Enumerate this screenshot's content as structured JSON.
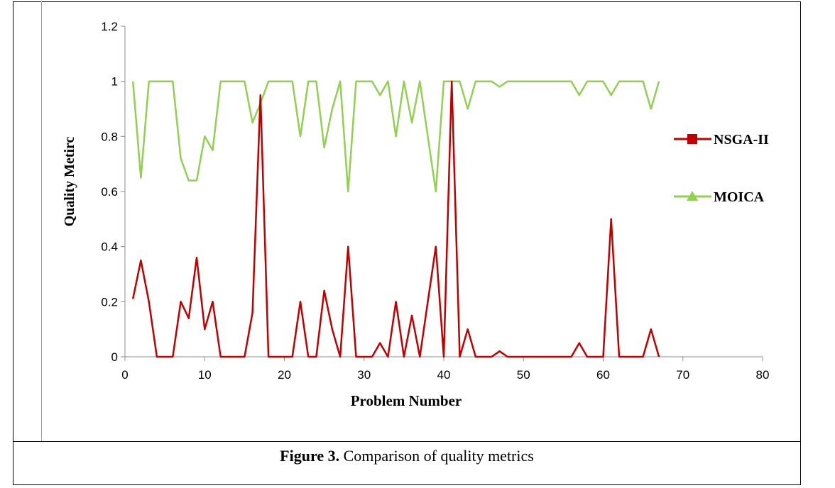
{
  "chart_data": {
    "type": "line",
    "title": "",
    "xlabel": "Problem Number",
    "ylabel": "Quality Metirc",
    "xlim": [
      0,
      80
    ],
    "ylim": [
      0,
      1.2
    ],
    "xticks": [
      "0",
      "10",
      "20",
      "30",
      "40",
      "50",
      "60",
      "70",
      "80"
    ],
    "yticks": [
      "0",
      "0.2",
      "0.4",
      "0.6",
      "0.8",
      "1",
      "1.2"
    ],
    "grid": false,
    "legend_position": "right",
    "x": [
      1,
      2,
      3,
      4,
      5,
      6,
      7,
      8,
      9,
      10,
      11,
      12,
      13,
      14,
      15,
      16,
      17,
      18,
      19,
      20,
      21,
      22,
      23,
      24,
      25,
      26,
      27,
      28,
      29,
      30,
      31,
      32,
      33,
      34,
      35,
      36,
      37,
      38,
      39,
      40,
      41,
      42,
      43,
      44,
      45,
      46,
      47,
      48,
      49,
      50,
      51,
      52,
      53,
      54,
      55,
      56,
      57,
      58,
      59,
      60,
      61,
      62,
      63,
      64,
      65,
      66,
      67
    ],
    "series": [
      {
        "name": "NSGA-II",
        "color": "#c00000",
        "marker": "square",
        "values": [
          0.21,
          0.35,
          0.2,
          0,
          0,
          0,
          0.2,
          0.14,
          0.36,
          0.1,
          0.2,
          0,
          0,
          0,
          0,
          0.16,
          0.95,
          0,
          0,
          0,
          0,
          0.2,
          0,
          0,
          0.24,
          0.1,
          0,
          0.4,
          0,
          0,
          0,
          0.05,
          0,
          0.2,
          0,
          0.15,
          0,
          0.2,
          0.4,
          0,
          1.0,
          0,
          0.1,
          0,
          0,
          0,
          0.02,
          0,
          0,
          0,
          0,
          0,
          0,
          0,
          0,
          0,
          0.05,
          0,
          0,
          0,
          0.5,
          0,
          0,
          0,
          0,
          0.1,
          0
        ]
      },
      {
        "name": "MOICA",
        "color": "#92d050",
        "marker": "triangle",
        "values": [
          1.0,
          0.65,
          1.0,
          1.0,
          1.0,
          1.0,
          0.72,
          0.64,
          0.64,
          0.8,
          0.75,
          1.0,
          1.0,
          1.0,
          1.0,
          0.85,
          0.92,
          1.0,
          1.0,
          1.0,
          1.0,
          0.8,
          1.0,
          1.0,
          0.76,
          0.9,
          1.0,
          0.6,
          1.0,
          1.0,
          1.0,
          0.95,
          1.0,
          0.8,
          1.0,
          0.85,
          1.0,
          0.8,
          0.6,
          1.0,
          1.0,
          1.0,
          0.9,
          1.0,
          1.0,
          1.0,
          0.98,
          1.0,
          1.0,
          1.0,
          1.0,
          1.0,
          1.0,
          1.0,
          1.0,
          1.0,
          0.95,
          1.0,
          1.0,
          1.0,
          0.95,
          1.0,
          1.0,
          1.0,
          1.0,
          0.9,
          1.0
        ]
      }
    ]
  },
  "caption": {
    "label": "Figure 3.",
    "text": " Comparison of quality metrics"
  }
}
